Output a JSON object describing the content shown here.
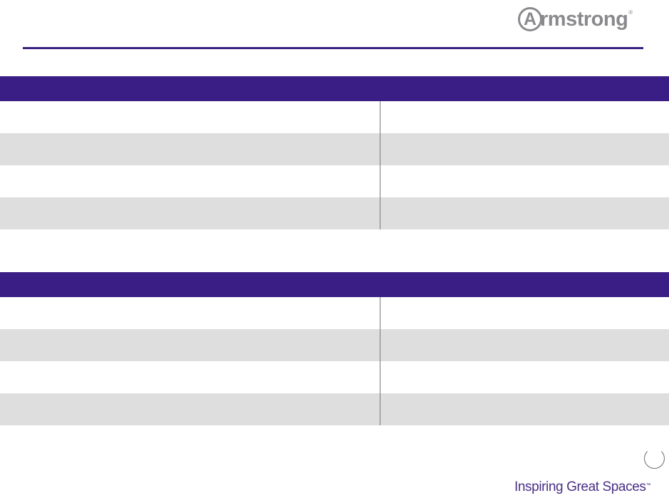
{
  "logo": {
    "text": "Armstrong",
    "ring_letter": "A",
    "word": "rmstrong",
    "registered": "®"
  },
  "tagline": {
    "text": "Inspiring Great Spaces",
    "mark": "™"
  },
  "colors": {
    "header_purple": "#3a1e85",
    "rule_purple": "#3c2180",
    "row_shade": "#dedede",
    "logo_gray": "#8a8a8e"
  },
  "tables": [
    {
      "header": "",
      "rows": [
        [
          "",
          ""
        ],
        [
          "",
          ""
        ],
        [
          "",
          ""
        ],
        [
          "",
          ""
        ]
      ]
    },
    {
      "header": "",
      "rows": [
        [
          "",
          ""
        ],
        [
          "",
          ""
        ],
        [
          "",
          ""
        ],
        [
          "",
          ""
        ]
      ]
    }
  ]
}
